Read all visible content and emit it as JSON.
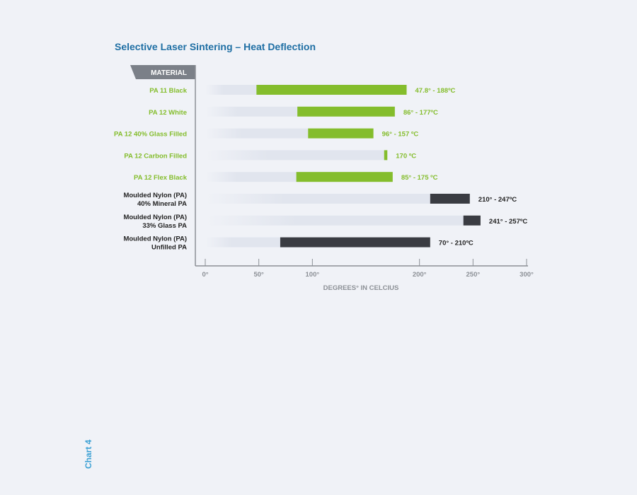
{
  "chart_data": {
    "type": "bar",
    "orientation": "horizontal-range",
    "title": "Selective Laser Sintering – Heat Deflection",
    "ylabel": "MATERIAL",
    "xlabel": "DEGREES° IN CELCIUS",
    "xlim": [
      0,
      300
    ],
    "xticks": [
      {
        "value": 0,
        "label": "0°"
      },
      {
        "value": 50,
        "label": "50°"
      },
      {
        "value": 100,
        "label": "100°"
      },
      {
        "value": 200,
        "label": "200°"
      },
      {
        "value": 250,
        "label": "250°"
      },
      {
        "value": 300,
        "label": "300°"
      }
    ],
    "grid": false,
    "colors": {
      "sls": "#84bd2c",
      "moulded": "#3a3c42",
      "track": "#e1e5ee",
      "title": "#1f6fa4",
      "axis": "#8c9096",
      "header_bg": "#7b8088",
      "note": "#3aa0d4"
    },
    "bars": [
      {
        "category": [
          "PA 11 Black"
        ],
        "group": "sls",
        "low": 47.8,
        "high": 188,
        "label": "47.8° - 188ºC"
      },
      {
        "category": [
          "PA 12 White"
        ],
        "group": "sls",
        "low": 86,
        "high": 177,
        "label": "86° - 177ºC"
      },
      {
        "category": [
          "PA 12 40% Glass Filled"
        ],
        "group": "sls",
        "low": 96,
        "high": 157,
        "label": "96° - 157 ºC"
      },
      {
        "category": [
          "PA 12 Carbon Filled"
        ],
        "group": "sls",
        "low": 167,
        "high": 170,
        "label": "170 ºC"
      },
      {
        "category": [
          "PA 12 Flex Black"
        ],
        "group": "sls",
        "low": 85,
        "high": 175,
        "label": "85° - 175 ºC"
      },
      {
        "category": [
          "Moulded Nylon (PA)",
          "40% Mineral PA"
        ],
        "group": "moulded",
        "low": 210,
        "high": 247,
        "label": "210° - 247ºC"
      },
      {
        "category": [
          "Moulded Nylon (PA)",
          "33% Glass PA"
        ],
        "group": "moulded",
        "low": 241,
        "high": 257,
        "label": "241° - 257ºC"
      },
      {
        "category": [
          "Moulded Nylon (PA)",
          "Unfilled PA"
        ],
        "group": "moulded",
        "low": 70,
        "high": 210,
        "label": "70° - 210ºC"
      }
    ]
  },
  "side_note": "Chart 4"
}
